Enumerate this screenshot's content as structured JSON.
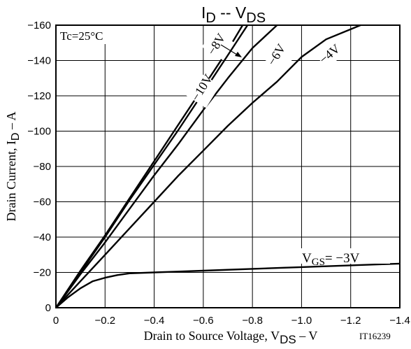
{
  "chart_data": {
    "type": "line",
    "title": {
      "main": "I",
      "sub1": "D",
      "mid": " -- V",
      "sub2": "DS"
    },
    "xlabel": {
      "pre": "Drain to Source Voltage, V",
      "sub": "DS",
      "post": "  –  V"
    },
    "ylabel": {
      "pre": "Drain Current, I",
      "sub": "D",
      "post": "  –  A"
    },
    "xlim": [
      0,
      -1.4
    ],
    "ylim": [
      0,
      -160
    ],
    "x_ticks": [
      0,
      -0.2,
      -0.4,
      -0.6,
      -0.8,
      -1.0,
      -1.2,
      -1.4
    ],
    "x_tick_labels": [
      "0",
      "−0.2",
      "−0.4",
      "−0.6",
      "−0.8",
      "−1.0",
      "−1.2",
      "−1.4"
    ],
    "y_ticks": [
      0,
      -20,
      -40,
      -60,
      -80,
      -100,
      -120,
      -140,
      -160
    ],
    "y_tick_labels": [
      "0",
      "−20",
      "−40",
      "−60",
      "−80",
      "−100",
      "−120",
      "−140",
      "−160"
    ],
    "grid": true,
    "condition": "Tc=25°C",
    "figure_id": "IT16239",
    "series": [
      {
        "name": "−10V",
        "x": [
          0,
          -0.1,
          -0.2,
          -0.3,
          -0.4,
          -0.5,
          -0.6,
          -0.7,
          -0.76
        ],
        "y": [
          0,
          -21,
          -41,
          -62,
          -83,
          -104,
          -125,
          -146,
          -160
        ]
      },
      {
        "name": "−8V",
        "x": [
          0,
          -0.1,
          -0.2,
          -0.3,
          -0.4,
          -0.5,
          -0.6,
          -0.7,
          -0.78
        ],
        "y": [
          0,
          -20,
          -40,
          -61,
          -81,
          -101,
          -122,
          -143,
          -160
        ]
      },
      {
        "name": "−6V",
        "x": [
          0,
          -0.1,
          -0.2,
          -0.3,
          -0.4,
          -0.5,
          -0.6,
          -0.7,
          -0.8,
          -0.9
        ],
        "y": [
          0,
          -19,
          -37,
          -56,
          -75,
          -93,
          -112,
          -130,
          -147,
          -160
        ]
      },
      {
        "name": "−4V",
        "x": [
          0,
          -0.1,
          -0.2,
          -0.3,
          -0.4,
          -0.5,
          -0.6,
          -0.7,
          -0.8,
          -0.9,
          -1.0,
          -1.1,
          -1.24
        ],
        "y": [
          0,
          -15,
          -30,
          -45,
          -60,
          -75,
          -89,
          -103,
          -116,
          -128,
          -142,
          -152,
          -160
        ]
      },
      {
        "name": "V_GS= −3V",
        "x": [
          0,
          -0.05,
          -0.1,
          -0.15,
          -0.2,
          -0.25,
          -0.3,
          -0.4,
          -0.6,
          -0.8,
          -1.0,
          -1.2,
          -1.4
        ],
        "y": [
          0,
          -6,
          -11,
          -15,
          -17,
          -18.5,
          -19.5,
          -20,
          -21,
          -22,
          -23,
          -24,
          -25
        ]
      }
    ],
    "annotations": [
      {
        "text": "−10V",
        "target": "−10V"
      },
      {
        "text": "−8V",
        "target": "−8V"
      },
      {
        "text": "−6V",
        "target": "−6V"
      },
      {
        "text": "−4V",
        "target": "−4V"
      },
      {
        "pre": "V",
        "sub": "GS",
        "post": "= −3V",
        "target": "V_GS= −3V"
      }
    ]
  }
}
